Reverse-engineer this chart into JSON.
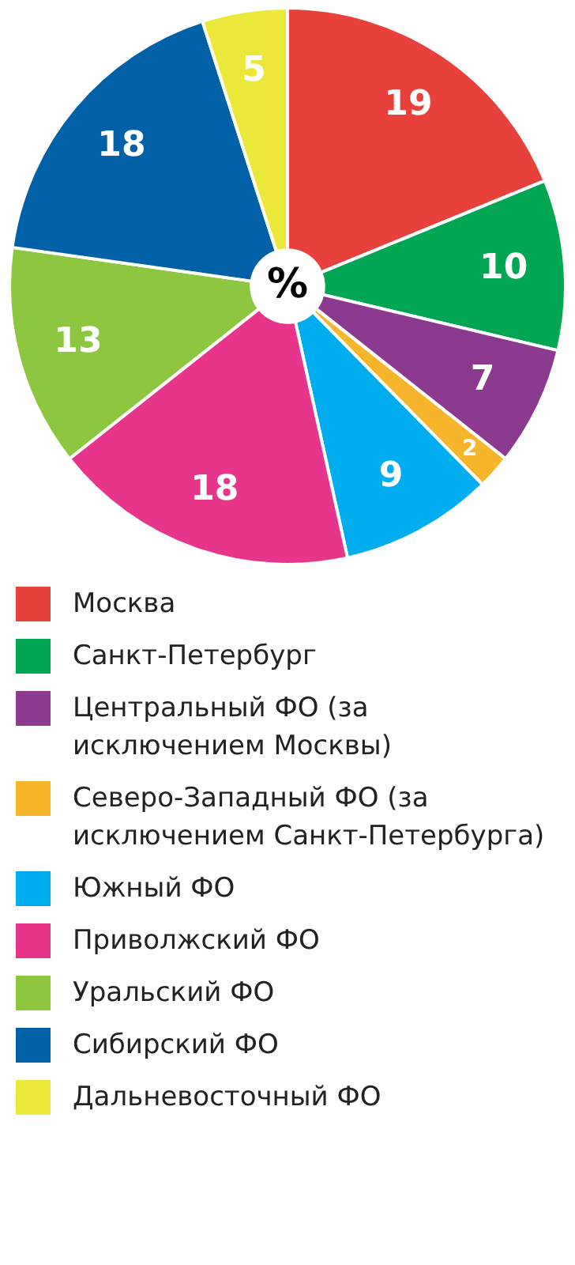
{
  "chart_data": {
    "type": "donut",
    "title": "%",
    "categories": [
      "Москва",
      "Санкт-Петербург",
      "Центральный ФО (за исключением Москвы)",
      "Северо-Западный ФО (за исключением Санкт-Петербурга)",
      "Южный ФО",
      "Приволжский ФО",
      "Уральский ФО",
      "Сибирский ФО",
      "Дальневосточный ФО"
    ],
    "values": [
      19,
      10,
      7,
      2,
      9,
      18,
      13,
      18,
      5
    ],
    "colors": [
      "#e8403a",
      "#00a651",
      "#8b3a8f",
      "#f7b52c",
      "#00aeef",
      "#e6358b",
      "#8dc63f",
      "#0060a8",
      "#ece83a"
    ],
    "data_labels": true,
    "legend": "bottom"
  }
}
